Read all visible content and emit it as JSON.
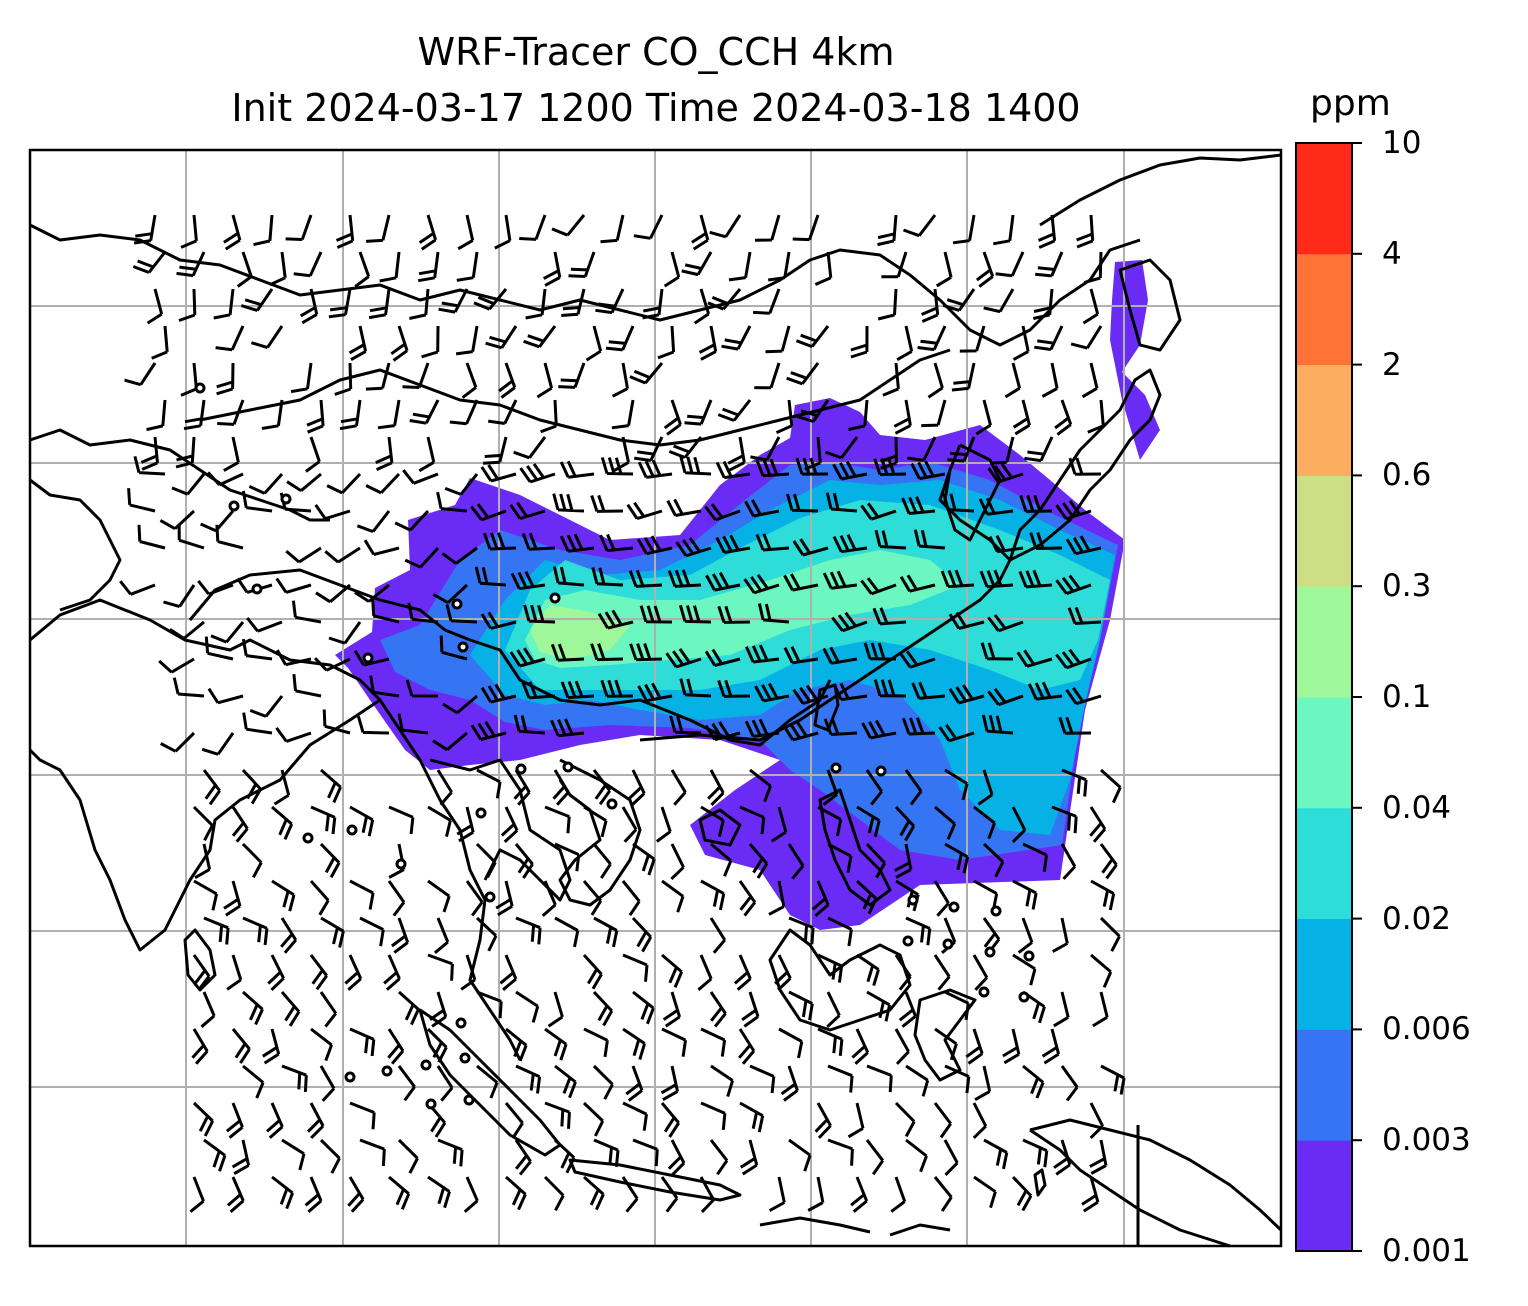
{
  "title": {
    "line1": "WRF-Tracer CO_CCH 4km",
    "line2": "Init 2024-03-17 1200 Time 2024-03-18 1400"
  },
  "colorbar": {
    "unit": "ppm",
    "levels": [
      "0.001",
      "0.003",
      "0.006",
      "0.02",
      "0.04",
      "0.1",
      "0.3",
      "0.6",
      "2",
      "4",
      "10"
    ],
    "colors": [
      "#6a2cf5",
      "#3574f2",
      "#06b1e6",
      "#2edcd8",
      "#6bf7bf",
      "#9ef899",
      "#cede84",
      "#fcad60",
      "#ff7337",
      "#ff2b18"
    ]
  },
  "map": {
    "gridlines": "on",
    "grid_color": "#b0b0b0",
    "coastline_color": "#000000",
    "wind_barbs": "on"
  }
}
